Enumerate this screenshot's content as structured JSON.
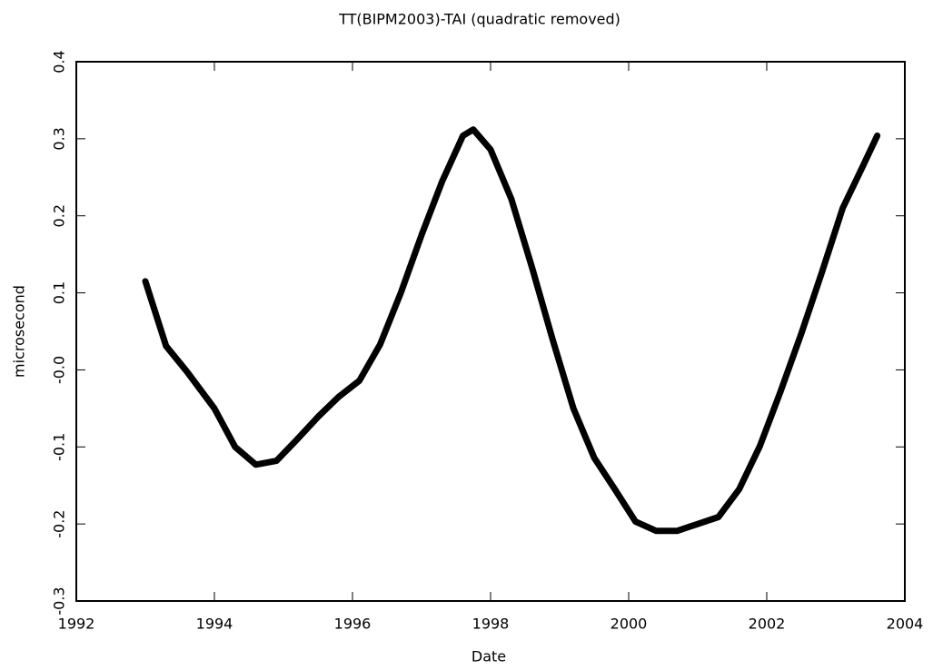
{
  "chart_data": {
    "type": "line",
    "title": "TT(BIPM2003)-TAI (quadratic removed)",
    "xlabel": "Date",
    "ylabel": "microsecond",
    "x": [
      1993.0,
      1993.3,
      1993.6,
      1994.0,
      1994.3,
      1994.6,
      1994.9,
      1995.2,
      1995.5,
      1995.8,
      1996.1,
      1996.4,
      1996.7,
      1997.0,
      1997.3,
      1997.6,
      1997.75,
      1998.0,
      1998.3,
      1998.6,
      1998.9,
      1999.2,
      1999.5,
      1999.8,
      2000.1,
      2000.4,
      2000.7,
      2001.0,
      2001.3,
      2001.6,
      2001.9,
      2002.2,
      2002.5,
      2002.8,
      2003.1,
      2003.4,
      2003.6
    ],
    "series": [
      {
        "color": "#000000",
        "values": [
          0.115,
          0.031,
          -0.002,
          -0.05,
          -0.1,
          -0.123,
          -0.118,
          -0.09,
          -0.061,
          -0.035,
          -0.014,
          0.033,
          0.1,
          0.175,
          0.245,
          0.304,
          0.312,
          0.286,
          0.222,
          0.133,
          0.039,
          -0.05,
          -0.114,
          -0.155,
          -0.197,
          -0.209,
          -0.209,
          -0.2,
          -0.191,
          -0.155,
          -0.099,
          -0.028,
          0.047,
          0.127,
          0.21,
          0.266,
          0.304
        ]
      }
    ],
    "xlim": [
      1992,
      2004
    ],
    "xticks": [
      1992,
      1994,
      1996,
      1998,
      2000,
      2002,
      2004
    ],
    "ylim": [
      -0.3,
      0.4
    ],
    "yticks": [
      -0.3,
      -0.2,
      -0.1,
      {
        "value": 0,
        "label": "-0.0"
      },
      0.1,
      0.2,
      0.3,
      0.4
    ],
    "grid": false
  }
}
